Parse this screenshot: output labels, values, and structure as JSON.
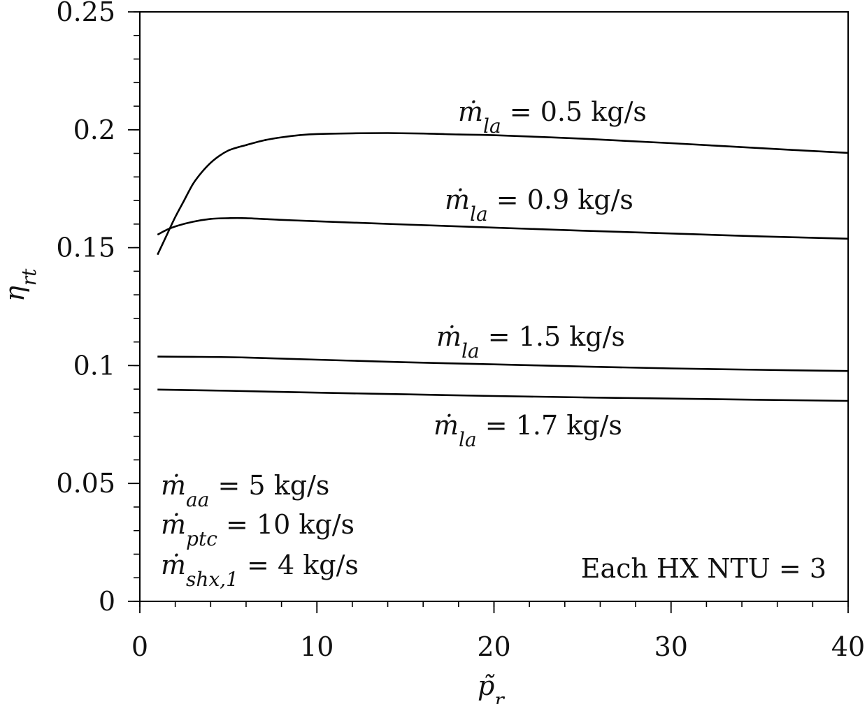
{
  "chart_data": {
    "type": "line",
    "title": "",
    "xlabel": "p̃r",
    "ylabel": "ηrt",
    "xlim": [
      0,
      40
    ],
    "ylim": [
      0,
      0.25
    ],
    "x_ticks": [
      0,
      10,
      20,
      30,
      40
    ],
    "x_tick_labels": [
      "0",
      "10",
      "20",
      "30",
      "40"
    ],
    "y_ticks": [
      0,
      0.05,
      0.1,
      0.15,
      0.2,
      0.25
    ],
    "y_tick_labels": [
      "0",
      "0.05",
      "0.1",
      "0.15",
      "0.2",
      "0.25"
    ],
    "x_minor_step": 2,
    "y_minor_step": 0.01,
    "grid": false,
    "series": [
      {
        "name": "ṁla = 0.5 kg/s",
        "x": [
          1,
          1.5,
          2,
          2.5,
          3,
          3.5,
          4,
          4.5,
          5,
          5.5,
          6,
          7,
          8,
          9,
          10,
          12,
          14,
          16,
          18,
          20,
          25,
          30,
          35,
          40
        ],
        "y": [
          0.147,
          0.155,
          0.163,
          0.17,
          0.177,
          0.182,
          0.186,
          0.189,
          0.1912,
          0.1925,
          0.1935,
          0.1955,
          0.1968,
          0.1977,
          0.1982,
          0.1985,
          0.1986,
          0.1984,
          0.198,
          0.1977,
          0.1962,
          0.1943,
          0.1922,
          0.1902
        ]
      },
      {
        "name": "ṁla = 0.9 kg/s",
        "x": [
          1,
          1.5,
          2,
          3,
          4,
          5,
          6,
          8,
          10,
          15,
          20,
          25,
          30,
          35,
          40
        ],
        "y": [
          0.1555,
          0.1575,
          0.159,
          0.161,
          0.1622,
          0.1625,
          0.1625,
          0.1618,
          0.1612,
          0.1598,
          0.1585,
          0.1572,
          0.156,
          0.1548,
          0.1538
        ]
      },
      {
        "name": "ṁla = 1.5 kg/s",
        "x": [
          1,
          3,
          6,
          10,
          15,
          20,
          25,
          30,
          35,
          40
        ],
        "y": [
          0.1038,
          0.1037,
          0.1034,
          0.1025,
          0.1014,
          0.1005,
          0.0996,
          0.0988,
          0.0982,
          0.0977
        ]
      },
      {
        "name": "ṁla = 1.7 kg/s",
        "x": [
          1,
          5,
          10,
          15,
          20,
          25,
          30,
          35,
          40
        ],
        "y": [
          0.0898,
          0.0893,
          0.0885,
          0.0878,
          0.0871,
          0.0865,
          0.086,
          0.0855,
          0.085
        ]
      }
    ],
    "annotations": {
      "m05": {
        "base": "ṁ",
        "sub": "la",
        "rest": " = 0.5 kg/s"
      },
      "m09": {
        "base": "ṁ",
        "sub": "la",
        "rest": " = 0.9 kg/s"
      },
      "m15": {
        "base": "ṁ",
        "sub": "la",
        "rest": " = 1.5 kg/s"
      },
      "m17": {
        "base": "ṁ",
        "sub": "la",
        "rest": " = 1.7 kg/s"
      },
      "maa": {
        "base": "ṁ",
        "sub": "aa",
        "rest": " = 5 kg/s"
      },
      "mptc": {
        "base": "ṁ",
        "sub": "ptc",
        "rest": " = 10 kg/s"
      },
      "mshx": {
        "base": "ṁ",
        "sub": "shx,1",
        "rest": " = 4 kg/s"
      },
      "ntu": "Each HX NTU = 3"
    },
    "axis_label_parts": {
      "x_base": "p̃",
      "x_sub": "r",
      "y_base": "η",
      "y_sub": "rt"
    }
  }
}
